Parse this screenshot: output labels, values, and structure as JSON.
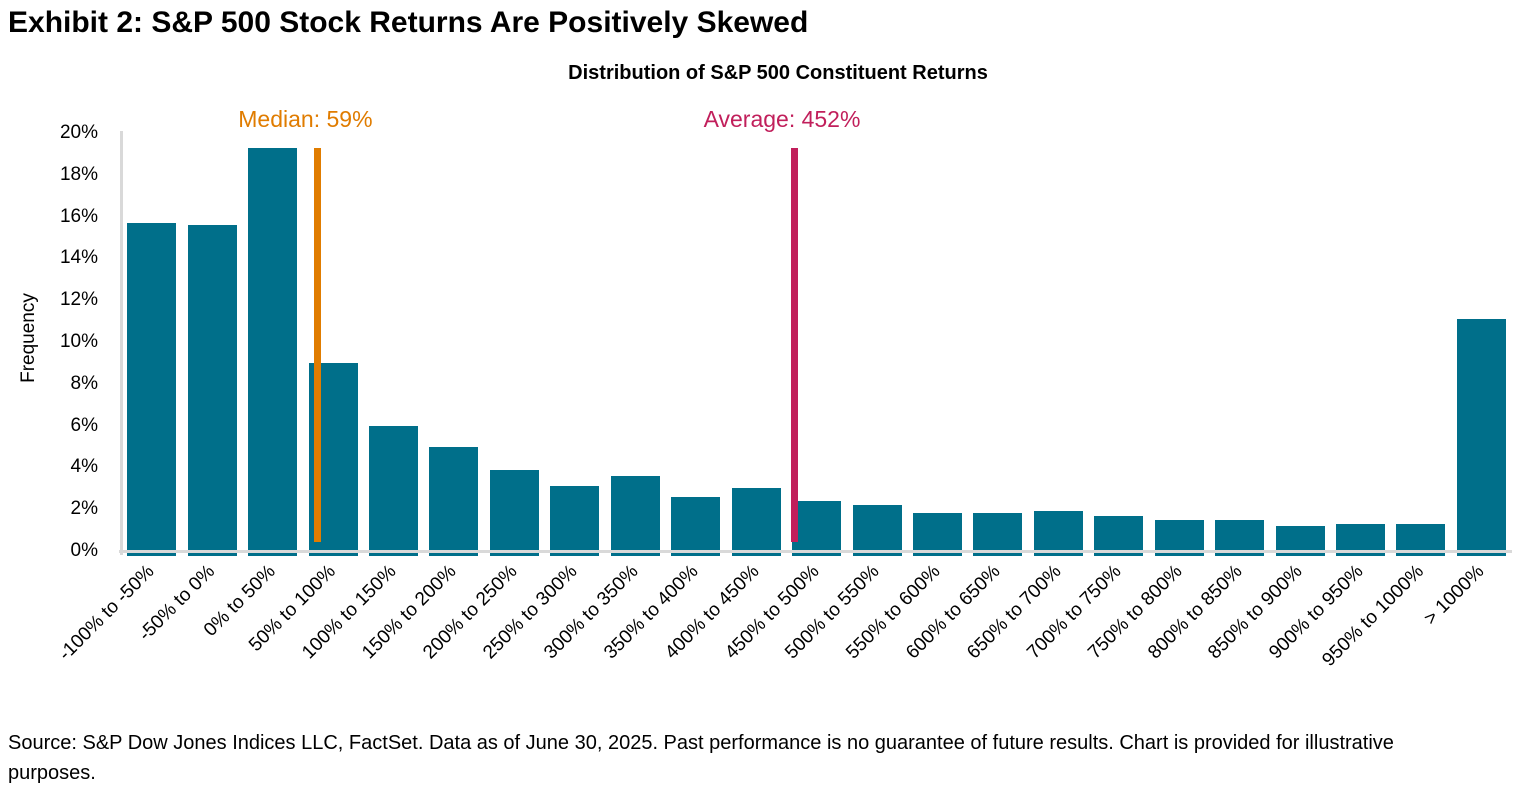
{
  "page": {
    "exhibit_title": "Exhibit 2: S&P 500 Stock Returns Are Positively Skewed",
    "source_text": "Source: S&P Dow Jones Indices LLC, FactSet. Data as of June 30, 2025. Past performance is no guarantee of future results. Chart is provided for illustrative purposes."
  },
  "chart_data": {
    "type": "bar",
    "title": "Distribution of S&P 500 Constituent Returns",
    "xlabel": "",
    "ylabel": "Frequency",
    "ylim": [
      0,
      20
    ],
    "ytick_labels": [
      "0%",
      "2%",
      "4%",
      "6%",
      "8%",
      "10%",
      "12%",
      "14%",
      "16%",
      "18%",
      "20%"
    ],
    "ytick_values": [
      0,
      2,
      4,
      6,
      8,
      10,
      12,
      14,
      16,
      18,
      20
    ],
    "grid": false,
    "legend": "none",
    "bar_color": "#006F8A",
    "axis_color": "#D9D9D9",
    "categories": [
      "-100% to -50%",
      "-50% to 0%",
      "0% to 50%",
      "50% to 100%",
      "100% to 150%",
      "150% to 200%",
      "200% to 250%",
      "250% to 300%",
      "300% to 350%",
      "350% to 400%",
      "400% to 450%",
      "450% to 500%",
      "500% to 550%",
      "550% to 600%",
      "600% to 650%",
      "650% to 700%",
      "700% to 750%",
      "750% to 800%",
      "800% to 850%",
      "850% to 900%",
      "900% to 950%",
      "950% to 1000%",
      "> 1000%"
    ],
    "values": [
      15.7,
      15.6,
      19.3,
      9.0,
      6.0,
      5.0,
      3.9,
      3.1,
      3.6,
      2.6,
      3.0,
      2.4,
      2.2,
      1.8,
      1.8,
      1.9,
      1.7,
      1.5,
      1.5,
      1.2,
      1.3,
      1.3,
      11.1
    ],
    "bucket_start": -100,
    "bucket_size": 50,
    "annotations": [
      {
        "name": "median",
        "label": "Median: 59%",
        "value": 59,
        "color": "#E07C00"
      },
      {
        "name": "average",
        "label": "Average: 452%",
        "value": 452,
        "color": "#C11F5B"
      }
    ]
  }
}
